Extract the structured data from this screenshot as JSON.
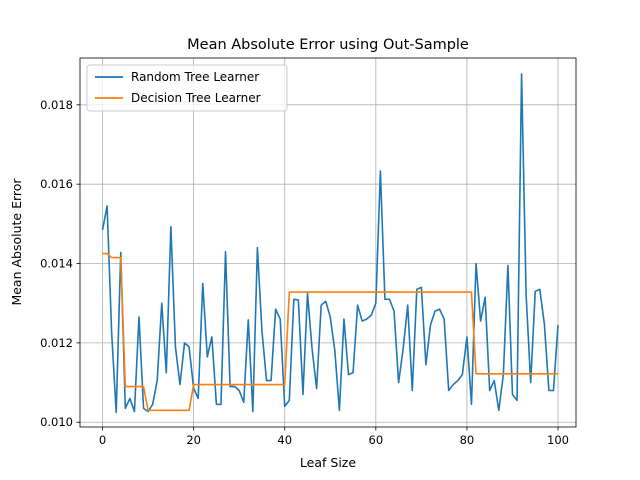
{
  "chart_data": {
    "type": "line",
    "title": "Mean Absolute Error using Out-Sample",
    "xlabel": "Leaf Size",
    "ylabel": "Mean Absolute Error",
    "xlim": [
      -4.95,
      103.95
    ],
    "ylim": [
      0.00988,
      0.01918
    ],
    "xticks": [
      0,
      20,
      40,
      60,
      80,
      100
    ],
    "yticks": [
      0.01,
      0.012,
      0.014,
      0.016,
      0.018
    ],
    "ytick_labels": [
      "0.010",
      "0.012",
      "0.014",
      "0.016",
      "0.018"
    ],
    "grid": true,
    "legend_position": "upper-left",
    "series": [
      {
        "name": "Random Tree Learner",
        "color": "#1f77b4",
        "values": [
          0.01485,
          0.01545,
          0.01225,
          0.01025,
          0.01428,
          0.01035,
          0.0106,
          0.01027,
          0.01265,
          0.01035,
          0.01027,
          0.01045,
          0.01105,
          0.013,
          0.01125,
          0.01493,
          0.0119,
          0.01095,
          0.012,
          0.0119,
          0.01085,
          0.0106,
          0.0135,
          0.01165,
          0.01215,
          0.01045,
          0.01045,
          0.0143,
          0.0109,
          0.0109,
          0.0108,
          0.0105,
          0.01258,
          0.01027,
          0.0144,
          0.0123,
          0.01105,
          0.01105,
          0.01285,
          0.0126,
          0.0104,
          0.01055,
          0.0131,
          0.01308,
          0.0107,
          0.01325,
          0.01185,
          0.01085,
          0.01295,
          0.01305,
          0.01265,
          0.0118,
          0.0103,
          0.0126,
          0.0112,
          0.01125,
          0.01295,
          0.01255,
          0.0126,
          0.0127,
          0.013,
          0.01633,
          0.0131,
          0.0131,
          0.0128,
          0.011,
          0.01185,
          0.01295,
          0.0108,
          0.01335,
          0.0134,
          0.01145,
          0.01245,
          0.0128,
          0.01285,
          0.0126,
          0.0108,
          0.01095,
          0.01105,
          0.0112,
          0.01215,
          0.01045,
          0.014,
          0.01255,
          0.01315,
          0.0108,
          0.01105,
          0.0103,
          0.0112,
          0.01395,
          0.0107,
          0.01055,
          0.01878,
          0.0132,
          0.011,
          0.0133,
          0.01335,
          0.01248,
          0.0108,
          0.0108,
          0.01245
        ]
      },
      {
        "name": "Decision Tree Learner",
        "color": "#ff7f0e",
        "values": [
          0.01425,
          0.01425,
          0.01415,
          0.01415,
          0.01415,
          0.0109,
          0.0109,
          0.0109,
          0.0109,
          0.0109,
          0.0103,
          0.0103,
          0.0103,
          0.0103,
          0.0103,
          0.0103,
          0.0103,
          0.0103,
          0.0103,
          0.0103,
          0.01095,
          0.01095,
          0.01095,
          0.01095,
          0.01095,
          0.01095,
          0.01095,
          0.01095,
          0.01095,
          0.01095,
          0.01095,
          0.01095,
          0.01095,
          0.01095,
          0.01095,
          0.01095,
          0.01095,
          0.01095,
          0.01095,
          0.01095,
          0.01095,
          0.01328,
          0.01328,
          0.01328,
          0.01328,
          0.01328,
          0.01328,
          0.01328,
          0.01328,
          0.01328,
          0.01328,
          0.01328,
          0.01328,
          0.01328,
          0.01328,
          0.01328,
          0.01328,
          0.01328,
          0.01328,
          0.01328,
          0.01328,
          0.01328,
          0.01328,
          0.01328,
          0.01328,
          0.01328,
          0.01328,
          0.01328,
          0.01328,
          0.01328,
          0.01328,
          0.01328,
          0.01328,
          0.01328,
          0.01328,
          0.01328,
          0.01328,
          0.01328,
          0.01328,
          0.01328,
          0.01328,
          0.01328,
          0.01122,
          0.01122,
          0.01122,
          0.01122,
          0.01122,
          0.01122,
          0.01122,
          0.01122,
          0.01122,
          0.01122,
          0.01122,
          0.01122,
          0.01122,
          0.01122,
          0.01122,
          0.01122,
          0.01122,
          0.01122,
          0.01122
        ]
      }
    ]
  }
}
